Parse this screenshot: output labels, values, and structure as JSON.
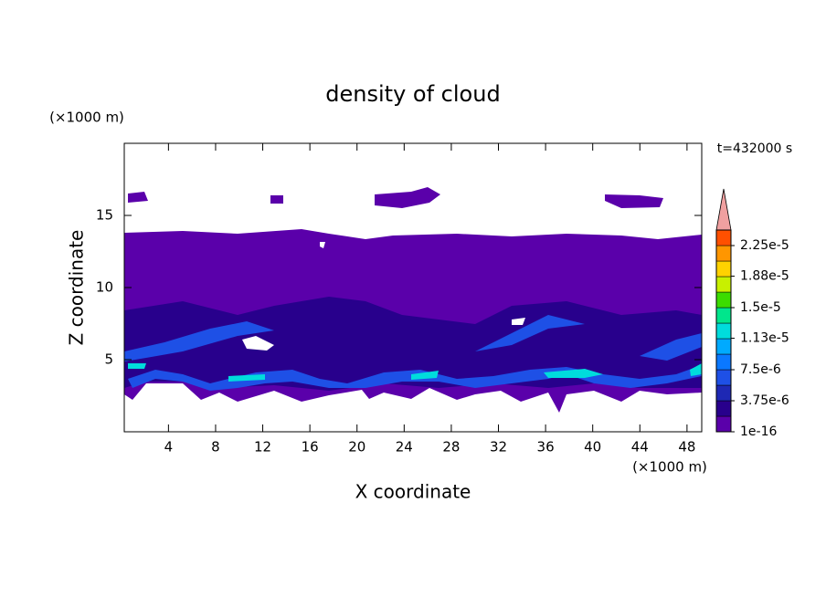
{
  "chart_data": {
    "type": "contour",
    "title": "density of cloud",
    "xlabel": "X coordinate",
    "ylabel": "Z coordinate",
    "xunit": "(×1000 m)",
    "yunit": "(×1000 m)",
    "time_label": "t=432000 s",
    "xlim": [
      0.25,
      49.25
    ],
    "ylim": [
      0,
      20
    ],
    "xticks": [
      4,
      8,
      12,
      16,
      20,
      24,
      28,
      32,
      36,
      40,
      44,
      48
    ],
    "yticks": [
      5,
      10,
      15
    ],
    "clim": [
      1e-16,
      2.4375e-05
    ],
    "colors": [
      "#5a00aa",
      "#28008c",
      "#1e28b4",
      "#1e50e6",
      "#0a78ff",
      "#00aaff",
      "#00dcdc",
      "#00e68c",
      "#3cdc00",
      "#c8f000",
      "#ffd200",
      "#ff9600",
      "#ff5000"
    ],
    "extend_color": "#f0a0a0",
    "cticks": [
      {
        "value": 1e-16,
        "label": "1e-16"
      },
      {
        "value": 3.75e-06,
        "label": "3.75e-6"
      },
      {
        "value": 7.5e-06,
        "label": "7.5e-6"
      },
      {
        "value": 1.13e-05,
        "label": "1.13e-5"
      },
      {
        "value": 1.5e-05,
        "label": "1.5e-5"
      },
      {
        "value": 1.88e-05,
        "label": "1.88e-5"
      },
      {
        "value": 2.25e-05,
        "label": "2.25e-5"
      }
    ]
  }
}
